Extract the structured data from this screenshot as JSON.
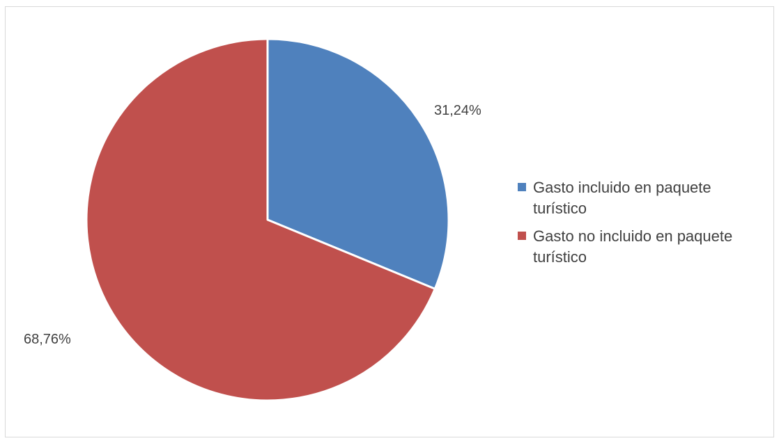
{
  "chart_data": {
    "type": "pie",
    "title": "",
    "slices": [
      {
        "label": "Gasto incluido en paquete turístico",
        "value": 31.24,
        "display": "31,24%",
        "color": "#4F81BD"
      },
      {
        "label": "Gasto no incluido en paquete turístico",
        "value": 68.76,
        "display": "68,76%",
        "color": "#C0504D"
      }
    ],
    "legend_position": "right",
    "start_angle": "top",
    "direction": "clockwise"
  }
}
